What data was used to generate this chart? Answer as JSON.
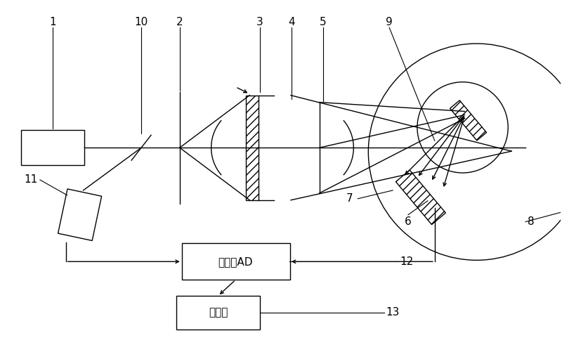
{
  "bg_color": "#ffffff",
  "line_color": "#000000",
  "fig_width": 8.0,
  "fig_height": 5.01,
  "amplifier_text": "放大与AD",
  "computer_text": "计算机"
}
